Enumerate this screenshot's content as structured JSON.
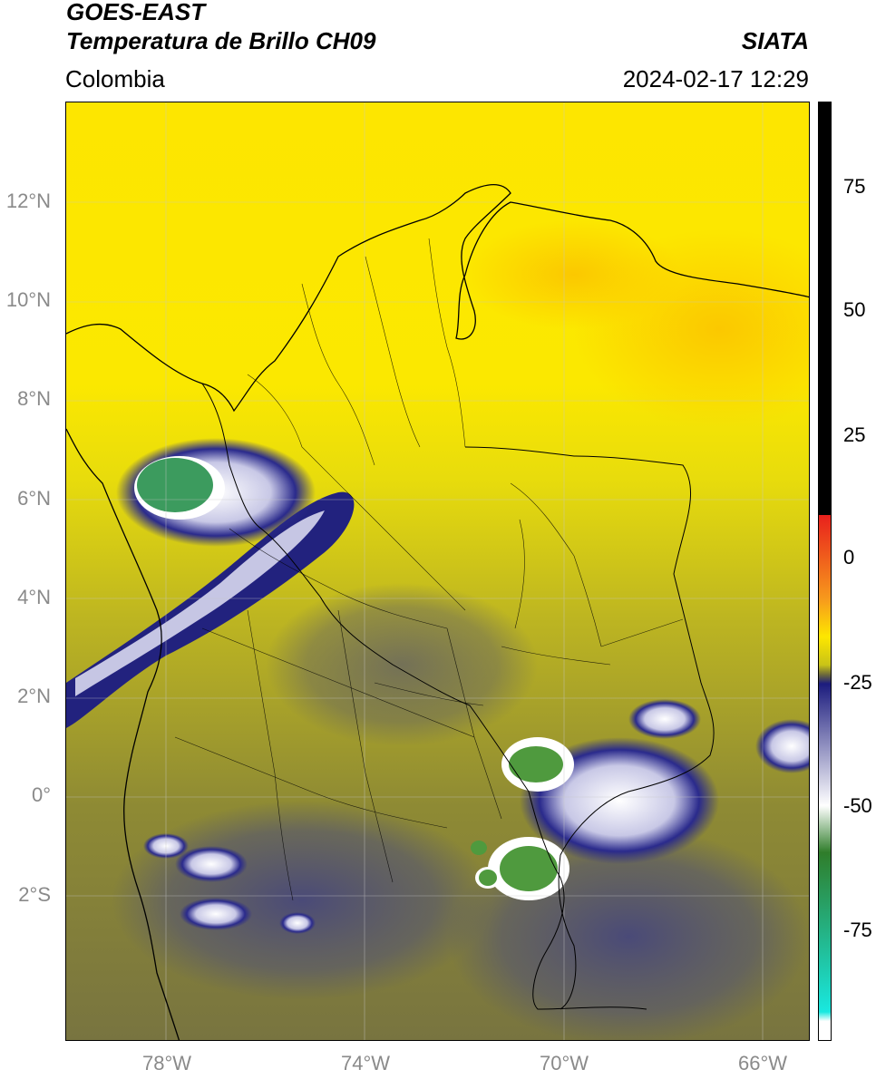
{
  "header": {
    "satellite": "GOES-EAST",
    "product": "Temperatura de Brillo CH09",
    "region": "Colombia",
    "institution": "SIATA",
    "datetime": "2024-02-17 12:29"
  },
  "axes": {
    "lat_labels": [
      "12°N",
      "10°N",
      "8°N",
      "6°N",
      "4°N",
      "2°N",
      "0°",
      "2°S"
    ],
    "lon_labels": [
      "78°W",
      "74°W",
      "70°W",
      "66°W"
    ]
  },
  "colorbar": {
    "labels": [
      "75",
      "50",
      "25",
      "0",
      "-25",
      "-50",
      "-75"
    ],
    "colors": [
      "#000000",
      "#e8201c",
      "#f79a1c",
      "#fde700",
      "#c9c317",
      "#6f6c3a",
      "#1c1c7e",
      "#ffffff",
      "#2f7d2a",
      "#19e8e0",
      "#ffffff"
    ]
  }
}
